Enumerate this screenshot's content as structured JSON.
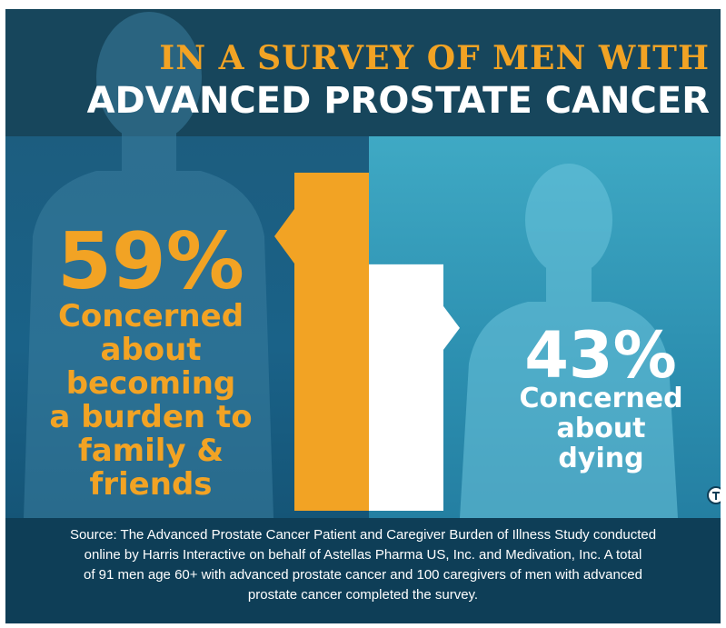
{
  "header": {
    "line1": "IN A SURVEY OF MEN WITH",
    "line2": "ADVANCED PROSTATE CANCER"
  },
  "chart_data": {
    "type": "bar",
    "categories": [
      "Concerned about becoming a burden to family & friends",
      "Concerned about dying"
    ],
    "values": [
      59,
      43
    ],
    "value_labels": [
      "59%",
      "43%"
    ],
    "descriptions": [
      [
        "Concerned",
        "about",
        "becoming",
        "a burden to",
        "family &",
        "friends"
      ],
      [
        "Concerned",
        "about",
        "dying"
      ]
    ],
    "ylim": [
      0,
      59
    ],
    "colors": [
      "#f2a324",
      "#ffffff"
    ],
    "grid": false
  },
  "source_lines": [
    "Source: The Advanced Prostate Cancer Patient and Caregiver Burden of Illness Study conducted",
    "online by Harris Interactive on behalf of Astellas Pharma US, Inc. and Medivation, Inc. A total",
    "of 91 men age 60+ with advanced prostate cancer and 100 caregivers of men with advanced",
    "prostate cancer completed the survey."
  ],
  "logo_icon": "nat-logo-icon"
}
